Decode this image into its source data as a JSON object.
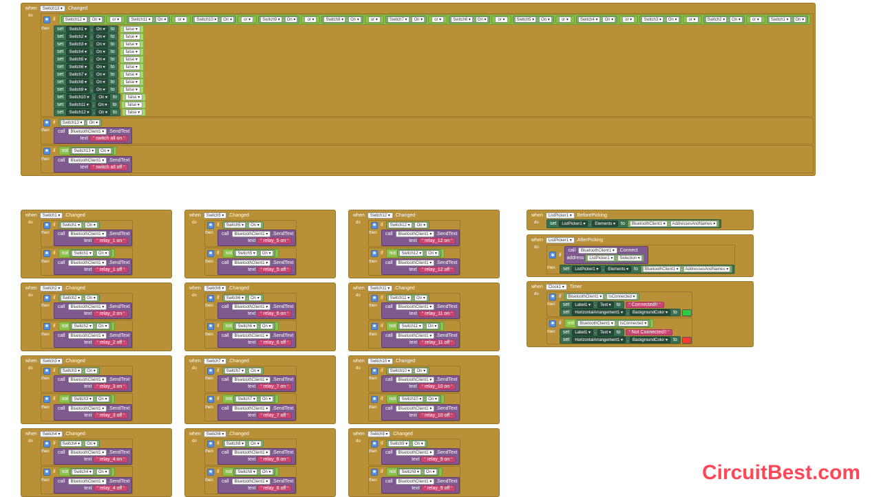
{
  "watermark": "CircuitBest.com",
  "colors": {
    "event_bg": "#b89037",
    "logic_bg": "#8bc34a",
    "bool_bg": "#a5d96a",
    "get_bg": "#7fb069",
    "set_bg": "#3a7050",
    "call_bg": "#7e5a8e",
    "text_bg": "#c94572",
    "connected_bg": "#2ecc40",
    "notconnected_bg": "#ff3b30"
  },
  "kw": {
    "when": "when",
    "do": "do",
    "if": "if",
    "then": "then",
    "set": "set",
    "to": "to",
    "call": "call",
    "text": "text",
    "or": "or",
    "not": "not",
    "address": "address"
  },
  "labels": {
    "changed": ".Changed",
    "on": "On",
    "sendtext": ".SendText",
    "false": "false",
    "beforepicking": ".BeforePicking",
    "afterpicking": ".AfterPicking",
    "elements": "Elements",
    "addressesandnames": "AddressesAndNames",
    "connect": ".Connect",
    "selection": "Selection",
    "timer": ".Timer",
    "isconnected": "IsConnected",
    "textprop": "Text",
    "bgcolor": "BackgroundColor",
    "connected": "Connected!!",
    "notconnected": "Not Connected!!"
  },
  "main": {
    "switch": "Switch13",
    "cond_switches": [
      "Switch12",
      "Switch11",
      "Switch10",
      "Switch9",
      "Switch8",
      "Switch7",
      "Switch6",
      "Switch5",
      "Switch4",
      "Switch3",
      "Switch2",
      "Switch1"
    ],
    "set_switches": [
      "Switch1",
      "Switch2",
      "Switch3",
      "Switch4",
      "Switch5",
      "Switch6",
      "Switch7",
      "Switch8",
      "Switch9",
      "Switch10",
      "Switch11",
      "Switch12"
    ],
    "on_text": "switch all on",
    "off_text": "switch all off",
    "bt": "BluetoothClient1"
  },
  "switch_blocks": [
    {
      "col": 1,
      "sw": "Switch1",
      "on": "relay_1 on",
      "off": "relay_1 off"
    },
    {
      "col": 1,
      "sw": "Switch2",
      "on": "relay_2 on",
      "off": "relay_2 off"
    },
    {
      "col": 1,
      "sw": "Switch3",
      "on": "relay_3 on",
      "off": "relay_3 off"
    },
    {
      "col": 1,
      "sw": "Switch4",
      "on": "relay_4 on",
      "off": "relay_4 off"
    },
    {
      "col": 2,
      "sw": "Switch5",
      "on": "relay_5 on",
      "off": "relay_5 off"
    },
    {
      "col": 2,
      "sw": "Switch6",
      "on": "relay_6 on",
      "off": "relay_6 off"
    },
    {
      "col": 2,
      "sw": "Switch7",
      "on": "relay_7 on",
      "off": "relay_7 off"
    },
    {
      "col": 2,
      "sw": "Switch8",
      "on": "relay_8 on",
      "off": "relay_8 off"
    },
    {
      "col": 3,
      "sw": "Switch12",
      "on": "relay_12 on",
      "off": "relay_12 off"
    },
    {
      "col": 3,
      "sw": "Switch11",
      "on": "relay_11 on",
      "off": "relay_11 off"
    },
    {
      "col": 3,
      "sw": "Switch10",
      "on": "relay_10 on",
      "off": "relay_10 off"
    },
    {
      "col": 3,
      "sw": "Switch9",
      "on": "relay_9 on",
      "off": "relay_9 off"
    }
  ],
  "bt": {
    "listpicker": "ListPicker1",
    "btclient": "BluetoothClient1",
    "clock": "Clock1",
    "label": "Label1",
    "harr": "HorizontalArrangement1"
  }
}
